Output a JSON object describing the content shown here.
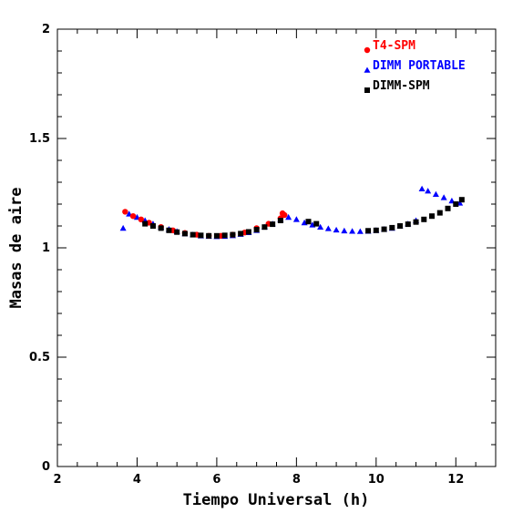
{
  "chart_data": {
    "type": "scatter",
    "title": "",
    "xlabel": "Tiempo Universal (h)",
    "ylabel": "Masas de aire",
    "xlim": [
      2,
      13
    ],
    "ylim": [
      0,
      2
    ],
    "xticks": [
      2,
      4,
      6,
      8,
      10,
      12
    ],
    "yticks": [
      0,
      0.5,
      1,
      1.5,
      2
    ],
    "xtick_labels": [
      "2",
      "4",
      "6",
      "8",
      "10",
      "12"
    ],
    "ytick_labels": [
      "0",
      "0.5",
      "1",
      "1.5",
      "2"
    ],
    "grid": false,
    "legend_position": "top-right",
    "series": [
      {
        "name": "T4-SPM",
        "color": "#ff0000",
        "marker": "circle",
        "x": [
          3.7,
          3.9,
          4.1,
          4.3,
          4.6,
          4.9,
          5.2,
          5.5,
          5.8,
          6.1,
          6.4,
          6.7,
          7.0,
          7.3,
          7.6,
          7.65,
          7.7
        ],
        "y": [
          1.165,
          1.145,
          1.13,
          1.115,
          1.095,
          1.08,
          1.068,
          1.06,
          1.055,
          1.055,
          1.06,
          1.07,
          1.09,
          1.11,
          1.135,
          1.158,
          1.15
        ]
      },
      {
        "name": "DIMM PORTABLE",
        "color": "#0000ff",
        "marker": "triangle",
        "x": [
          3.65,
          3.8,
          4.0,
          4.2,
          4.4,
          4.6,
          4.8,
          5.0,
          5.2,
          5.4,
          5.6,
          5.8,
          6.0,
          6.2,
          6.4,
          6.6,
          6.8,
          7.0,
          7.2,
          7.4,
          7.6,
          7.8,
          8.0,
          8.2,
          8.4,
          8.6,
          8.8,
          9.0,
          9.2,
          9.4,
          9.6,
          9.8,
          10.0,
          10.2,
          10.4,
          10.6,
          10.8,
          11.0,
          11.15,
          11.3,
          11.5,
          11.7,
          11.9,
          12.1
        ],
        "y": [
          1.09,
          1.155,
          1.14,
          1.125,
          1.11,
          1.095,
          1.085,
          1.075,
          1.065,
          1.06,
          1.055,
          1.053,
          1.052,
          1.053,
          1.056,
          1.062,
          1.07,
          1.08,
          1.095,
          1.11,
          1.13,
          1.14,
          1.13,
          1.115,
          1.105,
          1.095,
          1.088,
          1.082,
          1.078,
          1.076,
          1.075,
          1.076,
          1.08,
          1.085,
          1.09,
          1.1,
          1.11,
          1.125,
          1.27,
          1.26,
          1.245,
          1.23,
          1.215,
          1.205
        ]
      },
      {
        "name": "DIMM-SPM",
        "color": "#000000",
        "marker": "square",
        "x": [
          4.2,
          4.4,
          4.6,
          4.8,
          5.0,
          5.2,
          5.4,
          5.6,
          5.8,
          6.0,
          6.2,
          6.4,
          6.6,
          6.8,
          7.0,
          7.2,
          7.4,
          7.6,
          8.3,
          8.5,
          9.8,
          10.0,
          10.2,
          10.4,
          10.6,
          10.8,
          11.0,
          11.2,
          11.4,
          11.6,
          11.8,
          12.0,
          12.15
        ],
        "y": [
          1.11,
          1.1,
          1.09,
          1.08,
          1.072,
          1.065,
          1.06,
          1.057,
          1.055,
          1.055,
          1.057,
          1.06,
          1.065,
          1.073,
          1.083,
          1.095,
          1.108,
          1.125,
          1.12,
          1.11,
          1.078,
          1.08,
          1.085,
          1.092,
          1.1,
          1.108,
          1.118,
          1.13,
          1.145,
          1.16,
          1.18,
          1.2,
          1.22
        ]
      }
    ]
  }
}
